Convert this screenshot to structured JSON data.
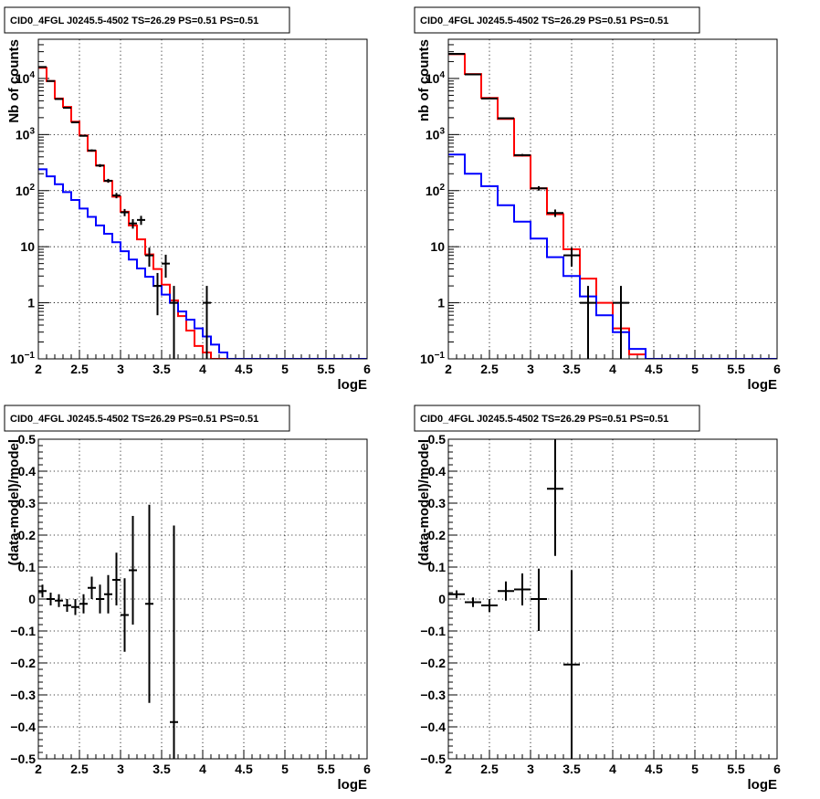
{
  "chart_data": [
    {
      "type": "histogram",
      "title": "CID0_4FGL J0245.5-4502 TS=26.29 PS=0.51 PS=0.51",
      "xlabel": "logE",
      "ylabel": "Nb of counts",
      "xlim": [
        2,
        6
      ],
      "ylim": [
        0.1,
        50000
      ],
      "yscale": "log",
      "grid": true,
      "x_ticks": [
        "2",
        "2.5",
        "3",
        "3.5",
        "4",
        "4.5",
        "5",
        "5.5",
        "6"
      ],
      "y_ticks": [
        {
          "value": 0.1,
          "label": "10",
          "exp": "−1"
        },
        {
          "value": 1,
          "label": "1",
          "exp": ""
        },
        {
          "value": 10,
          "label": "10",
          "exp": ""
        },
        {
          "value": 100,
          "label": "10",
          "exp": "2"
        },
        {
          "value": 1000,
          "label": "10",
          "exp": "3"
        },
        {
          "value": 10000,
          "label": "10",
          "exp": "4"
        }
      ],
      "bin_edges": [
        2.0,
        2.1,
        2.2,
        2.3,
        2.4,
        2.5,
        2.6,
        2.7,
        2.8,
        2.9,
        3.0,
        3.1,
        3.2,
        3.3,
        3.4,
        3.5,
        3.6,
        3.7,
        3.8,
        3.9,
        4.0,
        4.1,
        4.2,
        4.3,
        4.4,
        4.5,
        4.6,
        4.7,
        4.8,
        4.9,
        5.0,
        5.1,
        5.2,
        5.3,
        5.4,
        5.5,
        5.6,
        5.7,
        5.8,
        5.9,
        6.0
      ],
      "series": [
        {
          "color": "#ff0000",
          "style": "step",
          "values": [
            15500,
            9000,
            4400,
            3100,
            1700,
            960,
            510,
            280,
            148,
            78,
            42,
            24,
            13.5,
            7.3,
            4.0,
            2.1,
            1.1,
            0.58,
            0.32,
            0.17,
            0.13,
            0.1,
            0.1,
            0.1,
            0.1,
            0.1,
            0.1,
            0.1,
            0.1,
            0.1,
            0.1,
            0.1,
            0.1,
            0.1,
            0.1,
            0.1,
            0.1,
            0.1,
            0.1,
            0.1
          ]
        },
        {
          "color": "#0000ff",
          "style": "step",
          "values": [
            240,
            180,
            130,
            94,
            68,
            48,
            34,
            24,
            17,
            12,
            8.3,
            5.9,
            4.1,
            2.9,
            2.0,
            1.4,
            1.0,
            0.7,
            0.5,
            0.35,
            0.25,
            0.18,
            0.13,
            0.1,
            0.1,
            0.1,
            0.1,
            0.1,
            0.1,
            0.1,
            0.1,
            0.1,
            0.1,
            0.1,
            0.1,
            0.1,
            0.1,
            0.1,
            0.1,
            0.1
          ]
        },
        {
          "color": "#000000",
          "style": "errorbar",
          "points": [
            {
              "x": 2.05,
              "y": 16000,
              "xerr": 0.05,
              "ylo": 15800,
              "yhi": 16200
            },
            {
              "x": 2.15,
              "y": 9000,
              "xerr": 0.05,
              "ylo": 8900,
              "yhi": 9100
            },
            {
              "x": 2.25,
              "y": 4300,
              "xerr": 0.05,
              "ylo": 4230,
              "yhi": 4370
            },
            {
              "x": 2.35,
              "y": 3000,
              "xerr": 0.05,
              "ylo": 2945,
              "yhi": 3055
            },
            {
              "x": 2.45,
              "y": 1650,
              "xerr": 0.05,
              "ylo": 1610,
              "yhi": 1690
            },
            {
              "x": 2.55,
              "y": 950,
              "xerr": 0.05,
              "ylo": 920,
              "yhi": 980
            },
            {
              "x": 2.65,
              "y": 520,
              "xerr": 0.05,
              "ylo": 497,
              "yhi": 543
            },
            {
              "x": 2.75,
              "y": 280,
              "xerr": 0.05,
              "ylo": 263,
              "yhi": 297
            },
            {
              "x": 2.85,
              "y": 150,
              "xerr": 0.05,
              "ylo": 138,
              "yhi": 162
            },
            {
              "x": 2.95,
              "y": 82,
              "xerr": 0.05,
              "ylo": 73,
              "yhi": 91
            },
            {
              "x": 3.05,
              "y": 41,
              "xerr": 0.05,
              "ylo": 35,
              "yhi": 47
            },
            {
              "x": 3.15,
              "y": 26,
              "xerr": 0.05,
              "ylo": 21,
              "yhi": 31
            },
            {
              "x": 3.25,
              "y": 30,
              "xerr": 0.05,
              "ylo": 24.5,
              "yhi": 35.5
            },
            {
              "x": 3.35,
              "y": 7,
              "xerr": 0.05,
              "ylo": 4.4,
              "yhi": 9.6
            },
            {
              "x": 3.45,
              "y": 2,
              "xerr": 0.05,
              "ylo": 0.6,
              "yhi": 3.4
            },
            {
              "x": 3.55,
              "y": 5,
              "xerr": 0.05,
              "ylo": 2.8,
              "yhi": 7.2
            },
            {
              "x": 3.65,
              "y": 1,
              "xerr": 0.05,
              "ylo": 0.1,
              "yhi": 2.0
            },
            {
              "x": 4.05,
              "y": 1,
              "xerr": 0.05,
              "ylo": 0.1,
              "yhi": 2.0
            }
          ]
        }
      ]
    },
    {
      "type": "histogram",
      "title": "CID0_4FGL J0245.5-4502 TS=26.29 PS=0.51 PS=0.51",
      "xlabel": "logE",
      "ylabel": "nb of counts",
      "xlim": [
        2,
        6
      ],
      "ylim": [
        0.1,
        50000
      ],
      "yscale": "log",
      "grid": true,
      "x_ticks": [
        "2",
        "2.5",
        "3",
        "3.5",
        "4",
        "4.5",
        "5",
        "5.5",
        "6"
      ],
      "y_ticks": [
        {
          "value": 0.1,
          "label": "10",
          "exp": "−1"
        },
        {
          "value": 1,
          "label": "1",
          "exp": ""
        },
        {
          "value": 10,
          "label": "10",
          "exp": ""
        },
        {
          "value": 100,
          "label": "10",
          "exp": "2"
        },
        {
          "value": 1000,
          "label": "10",
          "exp": "3"
        },
        {
          "value": 10000,
          "label": "10",
          "exp": "4"
        }
      ],
      "bin_edges": [
        2.0,
        2.2,
        2.4,
        2.6,
        2.8,
        3.0,
        3.2,
        3.4,
        3.6,
        3.8,
        4.0,
        4.2,
        4.4,
        4.6,
        4.8,
        5.0,
        5.2,
        5.4,
        5.6,
        5.8,
        6.0
      ],
      "series": [
        {
          "color": "#ff0000",
          "style": "step",
          "values": [
            27000,
            12000,
            4500,
            1900,
            420,
            110,
            38,
            9,
            2.7,
            1.0,
            0.35,
            0.12,
            0.1,
            0.1,
            0.1,
            0.1,
            0.1,
            0.1,
            0.1,
            0.1
          ]
        },
        {
          "color": "#0000ff",
          "style": "step",
          "values": [
            440,
            200,
            120,
            55,
            28,
            14,
            6.5,
            3,
            1.3,
            0.6,
            0.3,
            0.15,
            0.1,
            0.1,
            0.1,
            0.1,
            0.1,
            0.1,
            0.1,
            0.1
          ]
        },
        {
          "color": "#000000",
          "style": "errorbar",
          "points": [
            {
              "x": 2.1,
              "y": 27500,
              "xerr": 0.1,
              "ylo": 27200,
              "yhi": 27800
            },
            {
              "x": 2.3,
              "y": 11800,
              "xerr": 0.1,
              "ylo": 11600,
              "yhi": 12000
            },
            {
              "x": 2.5,
              "y": 4400,
              "xerr": 0.1,
              "ylo": 4300,
              "yhi": 4500
            },
            {
              "x": 2.7,
              "y": 1950,
              "xerr": 0.1,
              "ylo": 1900,
              "yhi": 2000
            },
            {
              "x": 2.9,
              "y": 430,
              "xerr": 0.1,
              "ylo": 410,
              "yhi": 450
            },
            {
              "x": 3.1,
              "y": 110,
              "xerr": 0.1,
              "ylo": 100,
              "yhi": 120
            },
            {
              "x": 3.3,
              "y": 40,
              "xerr": 0.1,
              "ylo": 34,
              "yhi": 46
            },
            {
              "x": 3.5,
              "y": 7,
              "xerr": 0.1,
              "ylo": 4.4,
              "yhi": 9.6
            },
            {
              "x": 3.7,
              "y": 1,
              "xerr": 0.1,
              "ylo": 0.1,
              "yhi": 2.0
            },
            {
              "x": 4.1,
              "y": 1,
              "xerr": 0.1,
              "ylo": 0.1,
              "yhi": 2.0
            }
          ]
        }
      ]
    },
    {
      "type": "errorbar",
      "title": "CID0_4FGL J0245.5-4502 TS=26.29 PS=0.51 PS=0.51",
      "xlabel": "logE",
      "ylabel": "(data-model)/model",
      "xlim": [
        2,
        6
      ],
      "ylim": [
        -0.5,
        0.5
      ],
      "yscale": "linear",
      "grid": true,
      "x_ticks": [
        "2",
        "2.5",
        "3",
        "3.5",
        "4",
        "4.5",
        "5",
        "5.5",
        "6"
      ],
      "y_ticks": [
        "−0.5",
        "−0.4",
        "−0.3",
        "−0.2",
        "−0.1",
        "0",
        "0.1",
        "0.2",
        "0.3",
        "0.4",
        "0.5"
      ],
      "points": [
        {
          "x": 2.05,
          "y": 0.025,
          "xerr": 0.05,
          "ylo": 0.005,
          "yhi": 0.045
        },
        {
          "x": 2.15,
          "y": 0.0,
          "xerr": 0.05,
          "ylo": -0.02,
          "yhi": 0.02
        },
        {
          "x": 2.25,
          "y": -0.005,
          "xerr": 0.05,
          "ylo": -0.025,
          "yhi": 0.015
        },
        {
          "x": 2.35,
          "y": -0.02,
          "xerr": 0.05,
          "ylo": -0.04,
          "yhi": 0.0
        },
        {
          "x": 2.45,
          "y": -0.025,
          "xerr": 0.05,
          "ylo": -0.05,
          "yhi": 0.0
        },
        {
          "x": 2.55,
          "y": -0.015,
          "xerr": 0.05,
          "ylo": -0.045,
          "yhi": 0.015
        },
        {
          "x": 2.65,
          "y": 0.035,
          "xerr": 0.05,
          "ylo": 0.0,
          "yhi": 0.07
        },
        {
          "x": 2.75,
          "y": 0.0,
          "xerr": 0.05,
          "ylo": -0.045,
          "yhi": 0.045
        },
        {
          "x": 2.85,
          "y": 0.015,
          "xerr": 0.05,
          "ylo": -0.045,
          "yhi": 0.075
        },
        {
          "x": 2.95,
          "y": 0.06,
          "xerr": 0.05,
          "ylo": -0.02,
          "yhi": 0.145
        },
        {
          "x": 3.05,
          "y": -0.05,
          "xerr": 0.05,
          "ylo": -0.165,
          "yhi": 0.065
        },
        {
          "x": 3.15,
          "y": 0.09,
          "xerr": 0.05,
          "ylo": -0.08,
          "yhi": 0.26
        },
        {
          "x": 3.35,
          "y": -0.015,
          "xerr": 0.05,
          "ylo": -0.325,
          "yhi": 0.295
        },
        {
          "x": 3.65,
          "y": -0.385,
          "xerr": 0.05,
          "ylo": -0.5,
          "yhi": 0.23
        }
      ]
    },
    {
      "type": "errorbar",
      "title": "CID0_4FGL J0245.5-4502 TS=26.29 PS=0.51 PS=0.51",
      "xlabel": "logE",
      "ylabel": "(data-model)/model",
      "xlim": [
        2,
        6
      ],
      "ylim": [
        -0.5,
        0.5
      ],
      "yscale": "linear",
      "grid": true,
      "x_ticks": [
        "2",
        "2.5",
        "3",
        "3.5",
        "4",
        "4.5",
        "5",
        "5.5",
        "6"
      ],
      "y_ticks": [
        "−0.5",
        "−0.4",
        "−0.3",
        "−0.2",
        "−0.1",
        "0",
        "0.1",
        "0.2",
        "0.3",
        "0.4",
        "0.5"
      ],
      "points": [
        {
          "x": 2.1,
          "y": 0.015,
          "xerr": 0.1,
          "ylo": 0.003,
          "yhi": 0.027
        },
        {
          "x": 2.3,
          "y": -0.01,
          "xerr": 0.1,
          "ylo": -0.025,
          "yhi": 0.005
        },
        {
          "x": 2.5,
          "y": -0.02,
          "xerr": 0.1,
          "ylo": -0.04,
          "yhi": 0.0
        },
        {
          "x": 2.7,
          "y": 0.025,
          "xerr": 0.1,
          "ylo": -0.005,
          "yhi": 0.055
        },
        {
          "x": 2.9,
          "y": 0.03,
          "xerr": 0.1,
          "ylo": -0.02,
          "yhi": 0.08
        },
        {
          "x": 3.1,
          "y": 0.0,
          "xerr": 0.1,
          "ylo": -0.1,
          "yhi": 0.095
        },
        {
          "x": 3.3,
          "y": 0.345,
          "xerr": 0.1,
          "ylo": 0.135,
          "yhi": 0.5
        },
        {
          "x": 3.5,
          "y": -0.205,
          "xerr": 0.1,
          "ylo": -0.5,
          "yhi": 0.09
        }
      ]
    }
  ]
}
